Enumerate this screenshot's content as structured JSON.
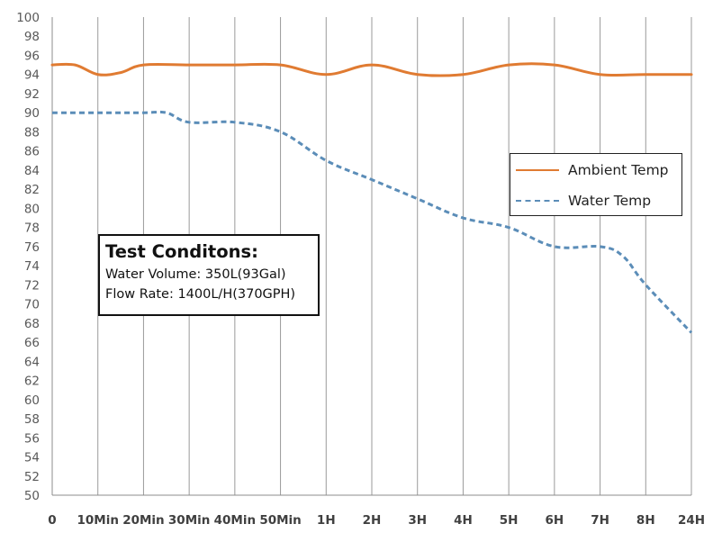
{
  "chart_data": {
    "type": "line",
    "categories": [
      "0",
      "10Min",
      "20Min",
      "30Min",
      "40Min",
      "50Min",
      "1H",
      "2H",
      "3H",
      "4H",
      "5H",
      "6H",
      "7H",
      "8H",
      "24H"
    ],
    "y_ticks": [
      "50",
      "52",
      "54",
      "56",
      "58",
      "60",
      "62",
      "64",
      "66",
      "68",
      "70",
      "72",
      "74",
      "76",
      "78",
      "80",
      "82",
      "84",
      "86",
      "88",
      "90",
      "92",
      "94",
      "96",
      "98",
      "100"
    ],
    "ylim": [
      50,
      100
    ],
    "grid": "vertical",
    "series": [
      {
        "name": "Ambient Temp",
        "color": "#e07b32",
        "style": "solid",
        "points": [
          [
            0,
            95
          ],
          [
            0.5,
            95
          ],
          [
            1,
            94
          ],
          [
            1.5,
            94.2
          ],
          [
            2,
            95
          ],
          [
            3,
            95
          ],
          [
            4,
            95
          ],
          [
            5,
            95
          ],
          [
            6,
            94
          ],
          [
            7,
            95
          ],
          [
            8,
            94
          ],
          [
            9,
            94
          ],
          [
            10,
            95
          ],
          [
            11,
            95
          ],
          [
            12,
            94
          ],
          [
            13,
            94
          ],
          [
            14,
            94
          ]
        ]
      },
      {
        "name": "Water Temp",
        "color": "#5b8db8",
        "style": "dashed",
        "points": [
          [
            0,
            90
          ],
          [
            1,
            90
          ],
          [
            2,
            90
          ],
          [
            2.5,
            90
          ],
          [
            3,
            89
          ],
          [
            4,
            89
          ],
          [
            5,
            88
          ],
          [
            6,
            85
          ],
          [
            7,
            83
          ],
          [
            8,
            81
          ],
          [
            9,
            79
          ],
          [
            10,
            78
          ],
          [
            11,
            76
          ],
          [
            12,
            76
          ],
          [
            12.5,
            75
          ],
          [
            13,
            72
          ],
          [
            14,
            67
          ]
        ]
      }
    ]
  },
  "legend": {
    "ambient": "Ambient Temp",
    "water": "Water Temp"
  },
  "note": {
    "title": "Test Conditons:",
    "line1": "Water Volume: 350L(93Gal)",
    "line2": "Flow Rate: 1400L/H(370GPH)"
  }
}
